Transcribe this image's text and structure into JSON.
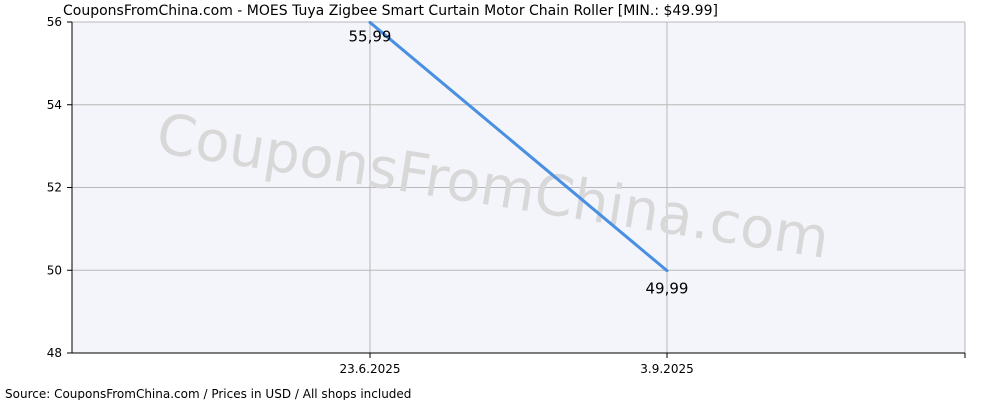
{
  "chart_data": {
    "type": "line",
    "title": "CouponsFromChina.com - MOES Tuya Zigbee Smart Curtain Motor Chain Roller [MIN.: $49.99]",
    "watermark": "CouponsFromChina.com",
    "source": "Source: CouponsFromChina.com / Prices in USD / All shops included",
    "x": [
      "23.6.2025",
      "3.9.2025"
    ],
    "xlabel": "",
    "ylabel": "",
    "ylim": [
      48,
      56
    ],
    "yticks": [
      48,
      50,
      52,
      54,
      56
    ],
    "grid": true,
    "series": [
      {
        "values": [
          55.99,
          49.99
        ],
        "labels": [
          "55,99",
          "49,99"
        ],
        "color": "#4a90e2"
      }
    ],
    "colors": {
      "plot_bg": "#f4f4fb",
      "grid": "#b8b8b8",
      "axis": "#000000",
      "watermark": "#d8d8d8"
    }
  }
}
